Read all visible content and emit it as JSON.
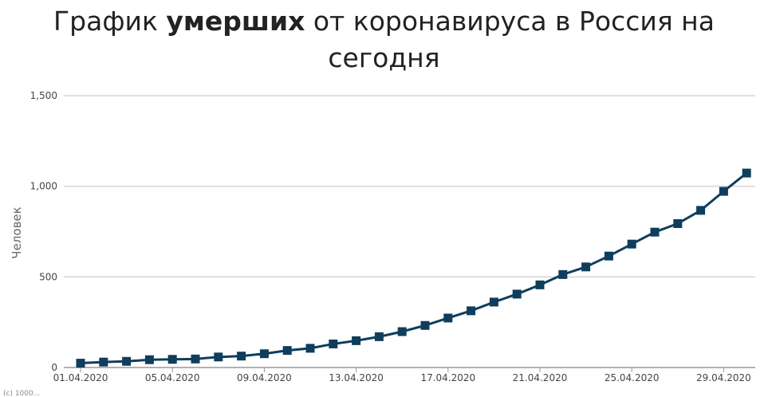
{
  "title": {
    "part1": "График ",
    "bold": "умерших",
    "part2": " от коронавируса в Россия на",
    "line2": "сегодня"
  },
  "credit": "(c) 1000...",
  "colors": {
    "series": "#0f3d5c",
    "grid": "#d5d5d5",
    "axis": "#999999"
  },
  "chart_data": {
    "type": "line",
    "title": "График умерших от коронавируса в Россия на сегодня",
    "xlabel": "",
    "ylabel": "Человек",
    "ylim": [
      0,
      1500
    ],
    "y_ticks": [
      0,
      500,
      1000,
      1500
    ],
    "y_tick_labels": [
      "0",
      "500",
      "1,000",
      "1,500"
    ],
    "grid": "horizontal",
    "marker": "square",
    "x": [
      "01.04.2020",
      "02.04.2020",
      "03.04.2020",
      "04.04.2020",
      "05.04.2020",
      "06.04.2020",
      "07.04.2020",
      "08.04.2020",
      "09.04.2020",
      "10.04.2020",
      "11.04.2020",
      "12.04.2020",
      "13.04.2020",
      "14.04.2020",
      "15.04.2020",
      "16.04.2020",
      "17.04.2020",
      "18.04.2020",
      "19.04.2020",
      "20.04.2020",
      "21.04.2020",
      "22.04.2020",
      "23.04.2020",
      "24.04.2020",
      "25.04.2020",
      "26.04.2020",
      "27.04.2020",
      "28.04.2020",
      "29.04.2020",
      "30.04.2020"
    ],
    "x_tick_labels": [
      "01.04.2020",
      "05.04.2020",
      "09.04.2020",
      "13.04.2020",
      "17.04.2020",
      "21.04.2020",
      "25.04.2020",
      "29.04.2020"
    ],
    "series": [
      {
        "values": [
          24,
          30,
          34,
          43,
          45,
          47,
          58,
          63,
          76,
          94,
          106,
          130,
          148,
          170,
          198,
          232,
          273,
          313,
          361,
          405,
          456,
          513,
          555,
          615,
          681,
          747,
          794,
          867,
          972,
          1073
        ]
      }
    ]
  }
}
